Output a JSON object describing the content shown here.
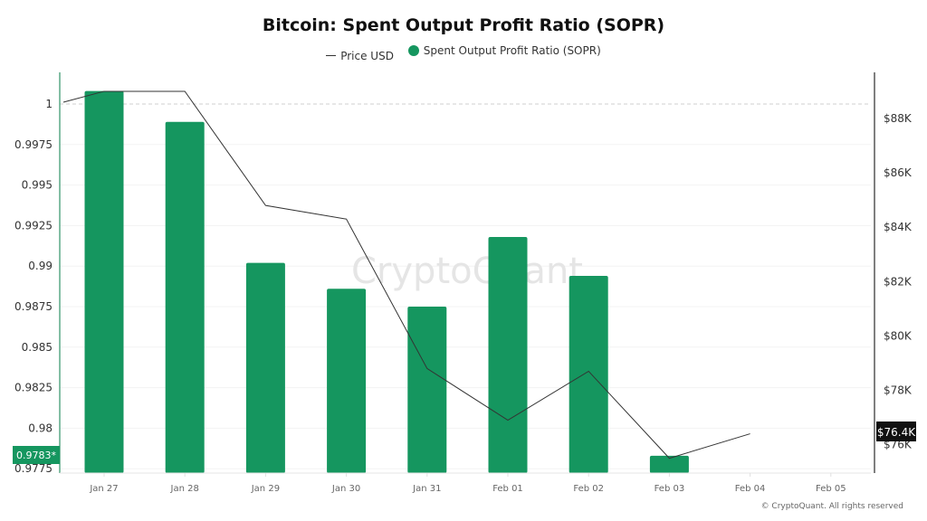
{
  "chart_data": {
    "type": "bar",
    "title": "Bitcoin: Spent Output Profit Ratio (SOPR)",
    "legend": [
      "Price USD",
      "Spent Output Profit Ratio (SOPR)"
    ],
    "legend_position": "top-center",
    "categories": [
      "Jan 27",
      "Jan 28",
      "Jan 29",
      "Jan 30",
      "Jan 31",
      "Feb 01",
      "Feb 02",
      "Feb 03",
      "Feb 04",
      "Feb 05"
    ],
    "series": [
      {
        "name": "Spent Output Profit Ratio (SOPR)",
        "type": "bar",
        "axis": "left",
        "color": "#15965f",
        "values": [
          1.0008,
          0.9989,
          0.9902,
          0.9886,
          0.9875,
          0.9918,
          0.9894,
          0.9783,
          null,
          null
        ]
      },
      {
        "name": "Price USD",
        "type": "line",
        "axis": "right",
        "color": "#333333",
        "start_value": 88600,
        "values": [
          89000,
          89000,
          84800,
          84300,
          78800,
          76900,
          78700,
          75500,
          76400,
          null
        ]
      }
    ],
    "left_axis": {
      "ylim": [
        0.9775,
        1.0015
      ],
      "ticks": [
        1,
        0.9975,
        0.995,
        0.9925,
        0.99,
        0.9875,
        0.985,
        0.9825,
        0.98,
        0.9775
      ],
      "tick_labels": [
        "1",
        "0.9975",
        "0.995",
        "0.9925",
        "0.99",
        "0.9875",
        "0.985",
        "0.9825",
        "0.98",
        "0.9775"
      ],
      "reference_line": 1
    },
    "right_axis": {
      "ylim": [
        75000,
        89500
      ],
      "ticks": [
        88000,
        86000,
        84000,
        82000,
        80000,
        78000,
        76000
      ],
      "tick_labels": [
        "$88K",
        "$86K",
        "$84K",
        "$82K",
        "$80K",
        "$78K",
        "$76K"
      ]
    },
    "current_value_left": "0.9783*",
    "current_value_right": "$76.4K",
    "watermark": "CryptoQuant",
    "copyright": "© CryptoQuant. All rights reserved",
    "grid": true
  }
}
